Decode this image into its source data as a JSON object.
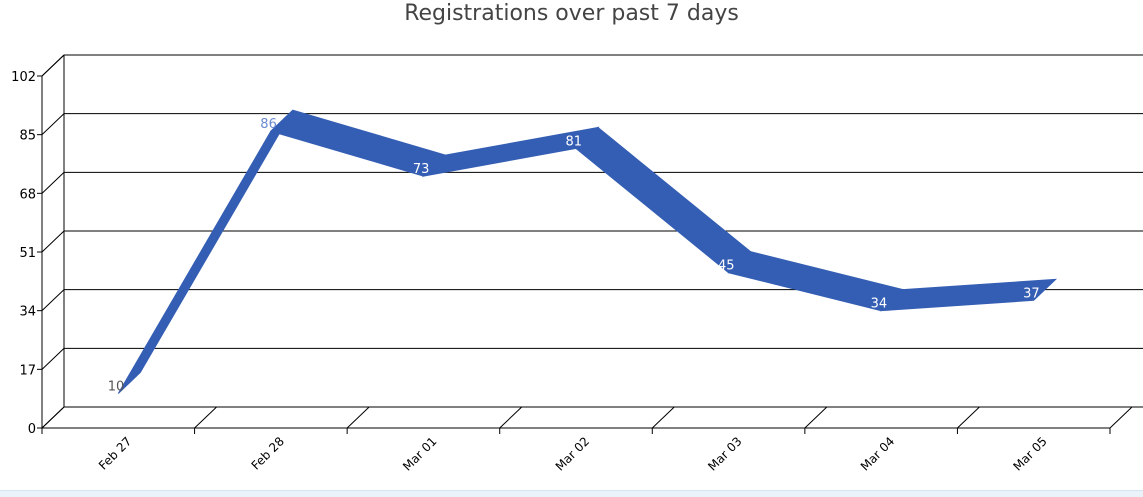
{
  "chart_data": {
    "type": "line",
    "title": "Registrations over past 7 days",
    "categories": [
      "Feb 27",
      "Feb 28",
      "Mar 01",
      "Mar 02",
      "Mar 03",
      "Mar 04",
      "Mar 05"
    ],
    "values": [
      10,
      86,
      73,
      81,
      45,
      34,
      37
    ],
    "yticks": [
      0,
      17,
      34,
      51,
      68,
      85,
      102
    ],
    "ylim": [
      0,
      102
    ],
    "grid": true,
    "three_d": true,
    "series_color": "#345eb4"
  }
}
